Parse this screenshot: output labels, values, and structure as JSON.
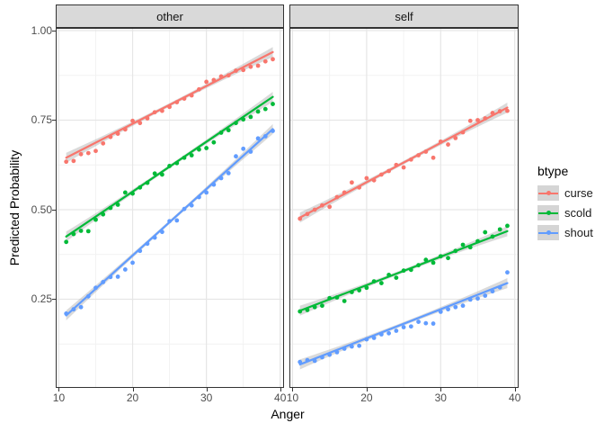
{
  "figure": {
    "kind": "ggplot-faceted-scatter-with-smooth"
  },
  "legend": {
    "title": "btype",
    "items": [
      {
        "label": "curse",
        "color": "#F8766D"
      },
      {
        "label": "scold",
        "color": "#00BA38"
      },
      {
        "label": "shout",
        "color": "#619CFF"
      }
    ]
  },
  "colors": {
    "strip_fill": "#d9d9d9",
    "panel_border": "#333333",
    "grid_major": "#e6e6e6",
    "grid_minor": "#f2f2f2",
    "tick_text": "#4d4d4d",
    "ribbon": "#a8a8a8"
  },
  "chart_data": {
    "type": "scatter",
    "title": "",
    "xlabel": "Anger",
    "ylabel": "Predicted Probability",
    "facets": [
      "other",
      "self"
    ],
    "legend_title": "btype",
    "legend_position": "right",
    "grid": "major+minor",
    "xlim": [
      9.7,
      40.4
    ],
    "ylim": [
      0.005,
      1.005
    ],
    "x_ticks": [
      10,
      20,
      30,
      40
    ],
    "x_tick_labels": [
      "10",
      "20",
      "30",
      "40"
    ],
    "x_minor": [
      15,
      25,
      35
    ],
    "y_ticks": [
      0.25,
      0.5,
      0.75,
      1.0
    ],
    "y_tick_labels": [
      "0.25",
      "0.50",
      "0.75",
      "1.00"
    ],
    "y_minor": [
      0.125,
      0.375,
      0.625,
      0.875
    ],
    "x": [
      11,
      12,
      13,
      14,
      15,
      16,
      17,
      18,
      19,
      20,
      21,
      22,
      23,
      24,
      25,
      26,
      27,
      28,
      29,
      30,
      31,
      32,
      33,
      34,
      35,
      36,
      37,
      38,
      39
    ],
    "series": [
      {
        "facet": "other",
        "name": "curse",
        "color": "#F8766D",
        "y": [
          0.634,
          0.636,
          0.655,
          0.658,
          0.664,
          0.685,
          0.703,
          0.712,
          0.724,
          0.748,
          0.742,
          0.755,
          0.772,
          0.776,
          0.787,
          0.8,
          0.81,
          0.819,
          0.836,
          0.857,
          0.862,
          0.872,
          0.875,
          0.888,
          0.89,
          0.899,
          0.902,
          0.914,
          0.92
        ],
        "trend": {
          "x": [
            11,
            39
          ],
          "y": [
            0.645,
            0.94
          ]
        }
      },
      {
        "facet": "other",
        "name": "scold",
        "color": "#00BA38",
        "y": [
          0.41,
          0.432,
          0.441,
          0.44,
          0.472,
          0.487,
          0.505,
          0.514,
          0.548,
          0.545,
          0.562,
          0.575,
          0.601,
          0.598,
          0.622,
          0.63,
          0.645,
          0.652,
          0.668,
          0.672,
          0.688,
          0.715,
          0.722,
          0.742,
          0.752,
          0.759,
          0.774,
          0.781,
          0.795
        ],
        "trend": {
          "x": [
            11,
            39
          ],
          "y": [
            0.425,
            0.815
          ]
        }
      },
      {
        "facet": "other",
        "name": "shout",
        "color": "#619CFF",
        "y": [
          0.21,
          0.222,
          0.228,
          0.258,
          0.282,
          0.298,
          0.312,
          0.313,
          0.333,
          0.352,
          0.385,
          0.405,
          0.422,
          0.438,
          0.468,
          0.47,
          0.502,
          0.512,
          0.535,
          0.548,
          0.57,
          0.588,
          0.602,
          0.649,
          0.67,
          0.662,
          0.699,
          0.705,
          0.72
        ],
        "trend": {
          "x": [
            11,
            39
          ],
          "y": [
            0.205,
            0.725
          ]
        }
      },
      {
        "facet": "self",
        "name": "curse",
        "color": "#F8766D",
        "y": [
          0.475,
          0.488,
          0.5,
          0.512,
          0.508,
          0.535,
          0.548,
          0.576,
          0.562,
          0.588,
          0.582,
          0.598,
          0.608,
          0.625,
          0.618,
          0.64,
          0.652,
          0.662,
          0.645,
          0.69,
          0.682,
          0.7,
          0.716,
          0.748,
          0.75,
          0.755,
          0.77,
          0.775,
          0.776
        ],
        "trend": {
          "x": [
            11,
            39
          ],
          "y": [
            0.478,
            0.785
          ]
        }
      },
      {
        "facet": "self",
        "name": "scold",
        "color": "#00BA38",
        "y": [
          0.216,
          0.22,
          0.228,
          0.232,
          0.253,
          0.255,
          0.245,
          0.27,
          0.275,
          0.282,
          0.3,
          0.295,
          0.318,
          0.31,
          0.33,
          0.332,
          0.345,
          0.36,
          0.352,
          0.37,
          0.365,
          0.385,
          0.402,
          0.395,
          0.412,
          0.437,
          0.425,
          0.445,
          0.455
        ],
        "trend": {
          "x": [
            11,
            39
          ],
          "y": [
            0.218,
            0.44
          ]
        }
      },
      {
        "facet": "self",
        "name": "shout",
        "color": "#619CFF",
        "y": [
          0.075,
          0.08,
          0.078,
          0.088,
          0.095,
          0.102,
          0.112,
          0.118,
          0.12,
          0.138,
          0.142,
          0.152,
          0.155,
          0.162,
          0.172,
          0.174,
          0.187,
          0.183,
          0.182,
          0.215,
          0.222,
          0.228,
          0.232,
          0.249,
          0.252,
          0.26,
          0.272,
          0.283,
          0.325
        ],
        "trend": {
          "x": [
            11,
            39
          ],
          "y": [
            0.068,
            0.295
          ]
        }
      }
    ]
  }
}
